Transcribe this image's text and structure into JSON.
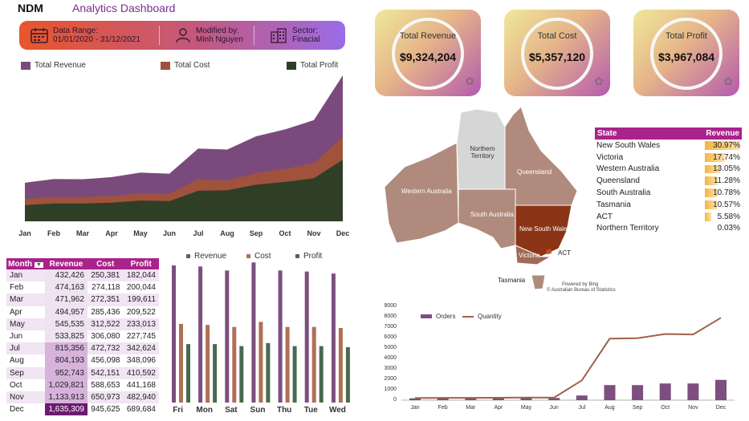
{
  "header": {
    "brand": "NDM",
    "title": "Analytics Dashboard"
  },
  "info": {
    "range_label": "Data Range:",
    "range_value": "01/01/2020 - 31/12/2021",
    "modified_label": "Modified by:",
    "modified_value": "Minh Nguyen",
    "sector_label": "Sector:",
    "sector_value": "Finacial"
  },
  "kpis": [
    {
      "label": "Total Revenue",
      "value": "$9,324,204"
    },
    {
      "label": "Total Cost",
      "value": "$5,357,120"
    },
    {
      "label": "Total Profit",
      "value": "$3,967,084"
    }
  ],
  "colors": {
    "revenue": "#7a4a7c",
    "cost": "#a0523d",
    "profit": "#2f3f26",
    "bar_revenue": "#7c4f80",
    "bar_cost": "#b06f55",
    "bar_profit": "#4a6a4f",
    "accent": "#a9238a"
  },
  "area_chart": {
    "legend": [
      "Total Revenue",
      "Total Cost",
      "Total Profit"
    ],
    "months": [
      "Jan",
      "Feb",
      "Mar",
      "Apr",
      "May",
      "Jun",
      "Jul",
      "Aug",
      "Sep",
      "Oct",
      "Nov",
      "Dec"
    ]
  },
  "month_table": {
    "headers": [
      "Month",
      "Revenue",
      "Cost",
      "Profit"
    ],
    "rows": [
      [
        "Jan",
        "432,426",
        "250,381",
        "182,044"
      ],
      [
        "Feb",
        "474,163",
        "274,118",
        "200,044"
      ],
      [
        "Mar",
        "471,962",
        "272,351",
        "199,611"
      ],
      [
        "Apr",
        "494,957",
        "285,436",
        "209,522"
      ],
      [
        "May",
        "545,535",
        "312,522",
        "233,013"
      ],
      [
        "Jun",
        "533,825",
        "306,080",
        "227,745"
      ],
      [
        "Jul",
        "815,356",
        "472,732",
        "342,624"
      ],
      [
        "Aug",
        "804,193",
        "456,098",
        "348,096"
      ],
      [
        "Sep",
        "952,743",
        "542,151",
        "410,592"
      ],
      [
        "Oct",
        "1,029,821",
        "588,653",
        "441,168"
      ],
      [
        "Nov",
        "1,133,913",
        "650,973",
        "482,940"
      ],
      [
        "Dec",
        "1,635,309",
        "945,625",
        "689,684"
      ]
    ]
  },
  "weekday_chart": {
    "legend": [
      "Revenue",
      "Cost",
      "Profit"
    ],
    "days": [
      "Fri",
      "Mon",
      "Sat",
      "Sun",
      "Thu",
      "Tue",
      "Wed"
    ]
  },
  "state_table": {
    "headers": [
      "State",
      "Revenue"
    ],
    "rows": [
      {
        "state": "New South Wales",
        "value": "30.97%",
        "pct": 30.97
      },
      {
        "state": "Victoria",
        "value": "17.74%",
        "pct": 17.74
      },
      {
        "state": "Western Australia",
        "value": "13.05%",
        "pct": 13.05
      },
      {
        "state": "Queensland",
        "value": "11.28%",
        "pct": 11.28
      },
      {
        "state": "South Australia",
        "value": "10.78%",
        "pct": 10.78
      },
      {
        "state": "Tasmania",
        "value": "10.57%",
        "pct": 10.57
      },
      {
        "state": "ACT",
        "value": "5.58%",
        "pct": 5.58
      },
      {
        "state": "Northern Territory",
        "value": "0.03%",
        "pct": 0.03
      }
    ]
  },
  "map": {
    "labels": {
      "nt": "Northern\nTerritory",
      "qld": "Queensland",
      "wa": "Western Australia",
      "sa": "South Australia",
      "nsw": "New South Wales",
      "vic": "Victoria",
      "act": "ACT",
      "tas": "Tasmania"
    },
    "credit1": "Powered by Bing",
    "credit2": "© Australian Bureau of Statistics"
  },
  "orders_chart": {
    "legend": [
      "Orders",
      "Quantity"
    ],
    "months": [
      "Jan",
      "Feb",
      "Mar",
      "Apr",
      "May",
      "Jun",
      "Jul",
      "Aug",
      "Sep",
      "Oct",
      "Nov",
      "Dec"
    ],
    "y_ticks": [
      "9000",
      "8000",
      "7000",
      "6000",
      "5000",
      "4000",
      "3000",
      "2000",
      "1000",
      "0"
    ]
  },
  "chart_data": [
    {
      "type": "area",
      "categories": [
        "Jan",
        "Feb",
        "Mar",
        "Apr",
        "May",
        "Jun",
        "Jul",
        "Aug",
        "Sep",
        "Oct",
        "Nov",
        "Dec"
      ],
      "series": [
        {
          "name": "Total Revenue",
          "values": [
            432426,
            474163,
            471962,
            494957,
            545535,
            533825,
            815356,
            804193,
            952743,
            1029821,
            1133913,
            1635309
          ]
        },
        {
          "name": "Total Cost",
          "values": [
            250381,
            274118,
            272351,
            285436,
            312522,
            306080,
            472732,
            456098,
            542151,
            588653,
            650973,
            945625
          ]
        },
        {
          "name": "Total Profit",
          "values": [
            182044,
            200044,
            199611,
            209522,
            233013,
            227745,
            342624,
            348096,
            410592,
            441168,
            482940,
            689684
          ]
        }
      ],
      "legend": "top"
    },
    {
      "type": "bar",
      "categories": [
        "Fri",
        "Mon",
        "Sat",
        "Sun",
        "Thu",
        "Tue",
        "Wed"
      ],
      "series": [
        {
          "name": "Revenue",
          "values": [
            1360000,
            1350000,
            1310000,
            1390000,
            1310000,
            1300000,
            1280000
          ]
        },
        {
          "name": "Cost",
          "values": [
            780000,
            770000,
            750000,
            800000,
            750000,
            750000,
            740000
          ]
        },
        {
          "name": "Profit",
          "values": [
            580000,
            580000,
            560000,
            590000,
            560000,
            560000,
            550000
          ]
        }
      ],
      "legend": "top"
    },
    {
      "type": "bar",
      "categories": [
        "Jan",
        "Feb",
        "Mar",
        "Apr",
        "May",
        "Jun",
        "Jul",
        "Aug",
        "Sep",
        "Oct",
        "Nov",
        "Dec"
      ],
      "series": [
        {
          "name": "Orders",
          "values": [
            180,
            190,
            190,
            200,
            220,
            210,
            450,
            1450,
            1450,
            1600,
            1600,
            1950
          ]
        },
        {
          "name": "Quantity",
          "values": [
            200,
            220,
            220,
            230,
            250,
            240,
            1900,
            5900,
            5950,
            6350,
            6300,
            7900
          ]
        }
      ],
      "ylim": [
        0,
        9000
      ],
      "legend": "top-left"
    }
  ]
}
